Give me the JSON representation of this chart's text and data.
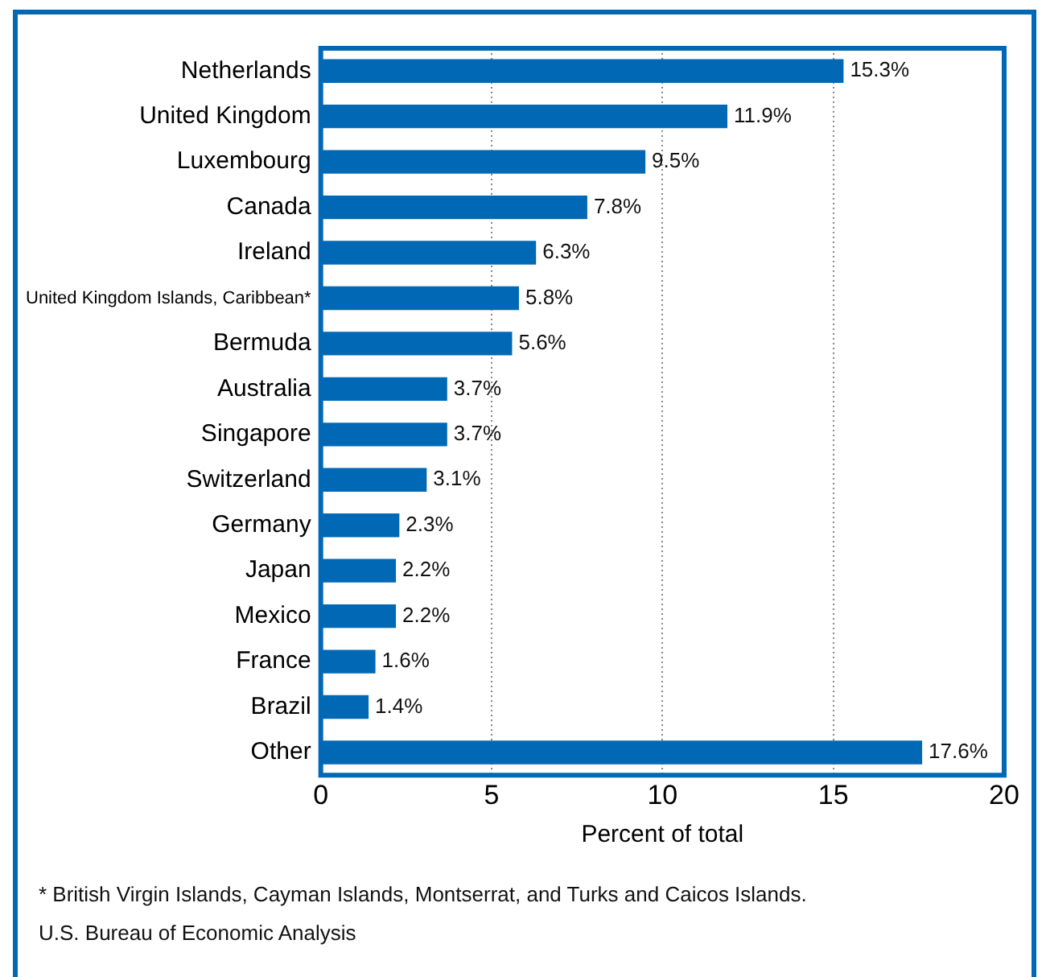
{
  "chart_data": {
    "type": "bar",
    "orientation": "horizontal",
    "categories": [
      "Netherlands",
      "United Kingdom",
      "Luxembourg",
      "Canada",
      "Ireland",
      "United Kingdom Islands, Caribbean*",
      "Bermuda",
      "Australia",
      "Singapore",
      "Switzerland",
      "Germany",
      "Japan",
      "Mexico",
      "France",
      "Brazil",
      "Other"
    ],
    "values": [
      15.3,
      11.9,
      9.5,
      7.8,
      6.3,
      5.8,
      5.6,
      3.7,
      3.7,
      3.1,
      2.3,
      2.2,
      2.2,
      1.6,
      1.4,
      17.6
    ],
    "value_labels": [
      "15.3%",
      "11.9%",
      "9.5%",
      "7.8%",
      "6.3%",
      "5.8%",
      "5.6%",
      "3.7%",
      "3.7%",
      "3.1%",
      "2.3%",
      "2.2%",
      "2.2%",
      "1.6%",
      "1.4%",
      "17.6%"
    ],
    "color": "#0068b4",
    "xlim": [
      0,
      20
    ],
    "xticks": [
      0,
      5,
      10,
      15,
      20
    ],
    "xlabel": "Percent of total",
    "grid": "x",
    "legend": false,
    "annotations": [
      "* British Virgin Islands, Cayman Islands, Montserrat, and Turks and Caicos Islands.",
      "U.S. Bureau of Economic Analysis"
    ]
  }
}
